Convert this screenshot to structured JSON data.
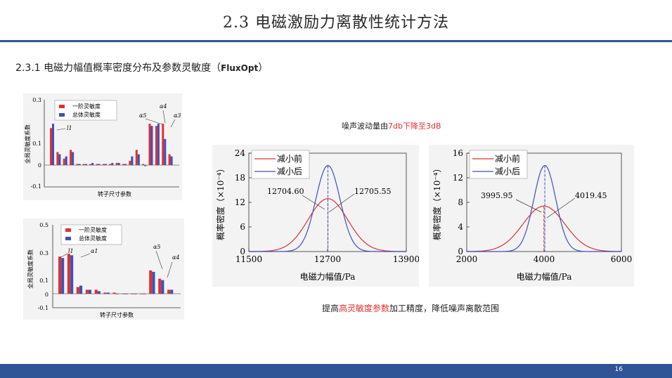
{
  "header": {
    "title": "2.3 电磁激励力离散性统计方法"
  },
  "section": {
    "heading": "2.3.1 电磁力幅值概率密度分布及参数灵敏度",
    "tag": "FluxOpt",
    "paren_open": "（",
    "paren_close": "）"
  },
  "notes": {
    "top_prefix": "噪声波动量由",
    "top_highlight": "7db下降至3dB",
    "bottom_prefix": "提高",
    "bottom_highlight": "高灵敏度参数",
    "bottom_suffix": "加工精度，降低噪声离散范围"
  },
  "footer": {
    "page_number": "16"
  },
  "colors": {
    "accent": "#2f5597",
    "red": "#e03030",
    "blue": "#3a52b8"
  },
  "sensitivity_charts": [
    {
      "ylabel": "全局灵敏度系数",
      "xlabel": "转子尺寸参数",
      "legend": [
        "一阶灵敏度",
        "总体灵敏度"
      ],
      "yticks": [
        "0.3",
        "0.1",
        "0",
        "-0.1"
      ],
      "annotations": [
        "l1",
        "α5",
        "α4",
        "α3"
      ],
      "chart_data": {
        "type": "bar",
        "ylim": [
          -0.1,
          0.3
        ],
        "series": [
          {
            "name": "一阶灵敏度",
            "values": [
              0.17,
              0.06,
              0.03,
              0.07,
              0.005,
              0.005,
              0.005,
              0.005,
              0.005,
              0.005,
              0.01,
              0.005,
              0.02,
              0.07,
              0.005,
              0.19,
              0.18,
              0.19,
              0.05
            ]
          },
          {
            "name": "总体灵敏度",
            "values": [
              0.19,
              0.05,
              0.04,
              0.06,
              0.005,
              0.005,
              0.01,
              0.005,
              0.005,
              0.01,
              0.01,
              0.005,
              0.04,
              0.05,
              -0.005,
              0.18,
              0.19,
              0.12,
              0.04
            ]
          }
        ]
      }
    },
    {
      "ylabel": "全局灵敏度系数",
      "xlabel": "转子尺寸参数",
      "legend": [
        "一阶灵敏度",
        "总体灵敏度"
      ],
      "yticks": [
        "0.5",
        "0.3",
        "0.1",
        "0",
        "-0.1"
      ],
      "annotations": [
        "l1",
        "α1",
        "α5",
        "α4"
      ],
      "chart_data": {
        "type": "bar",
        "ylim": [
          -0.1,
          0.5
        ],
        "series": [
          {
            "name": "一阶灵敏度",
            "values": [
              0.27,
              0.29,
              0.05,
              0.03,
              0.03,
              0.01,
              0.01,
              0.0,
              0.0,
              0.0,
              0.17,
              0.11,
              0.03
            ]
          },
          {
            "name": "总体灵敏度",
            "values": [
              0.26,
              0.28,
              0.06,
              0.03,
              0.02,
              0.01,
              0.0,
              0.0,
              0.0,
              0.0,
              0.16,
              0.1,
              0.03
            ]
          }
        ]
      }
    }
  ],
  "pdf_charts": [
    {
      "xlabel": "电磁力幅值/Pa",
      "ylabel": "概率密度（×10⁻⁴）",
      "legend": [
        "减小前",
        "减小后"
      ],
      "label_left": "12704.60",
      "label_right": "12705.55",
      "chart_data": {
        "type": "line",
        "xlim": [
          11500,
          13900
        ],
        "ylim": [
          0,
          24
        ],
        "xticks": [
          "11500",
          "12700",
          "13900"
        ],
        "yticks": [
          "0",
          "6",
          "12",
          "18",
          "24"
        ],
        "series": [
          {
            "name": "减小前",
            "mean": 12704.6,
            "peak": 12.9,
            "sd": 300
          },
          {
            "name": "减小后",
            "mean": 12705.55,
            "peak": 21.0,
            "sd": 185
          }
        ]
      }
    },
    {
      "xlabel": "电磁力幅值/Pa",
      "ylabel": "概率密度（×10⁻⁴）",
      "legend": [
        "减小前",
        "减小后"
      ],
      "label_left": "3995.95",
      "label_right": "4019.45",
      "chart_data": {
        "type": "line",
        "xlim": [
          2000,
          6000
        ],
        "ylim": [
          0,
          16
        ],
        "xticks": [
          "2000",
          "4000",
          "6000"
        ],
        "yticks": [
          "0",
          "4",
          "8",
          "12",
          "16"
        ],
        "series": [
          {
            "name": "减小前",
            "mean": 3995.95,
            "peak": 7.4,
            "sd": 540
          },
          {
            "name": "减小后",
            "mean": 4019.45,
            "peak": 14.0,
            "sd": 285
          }
        ]
      }
    }
  ]
}
